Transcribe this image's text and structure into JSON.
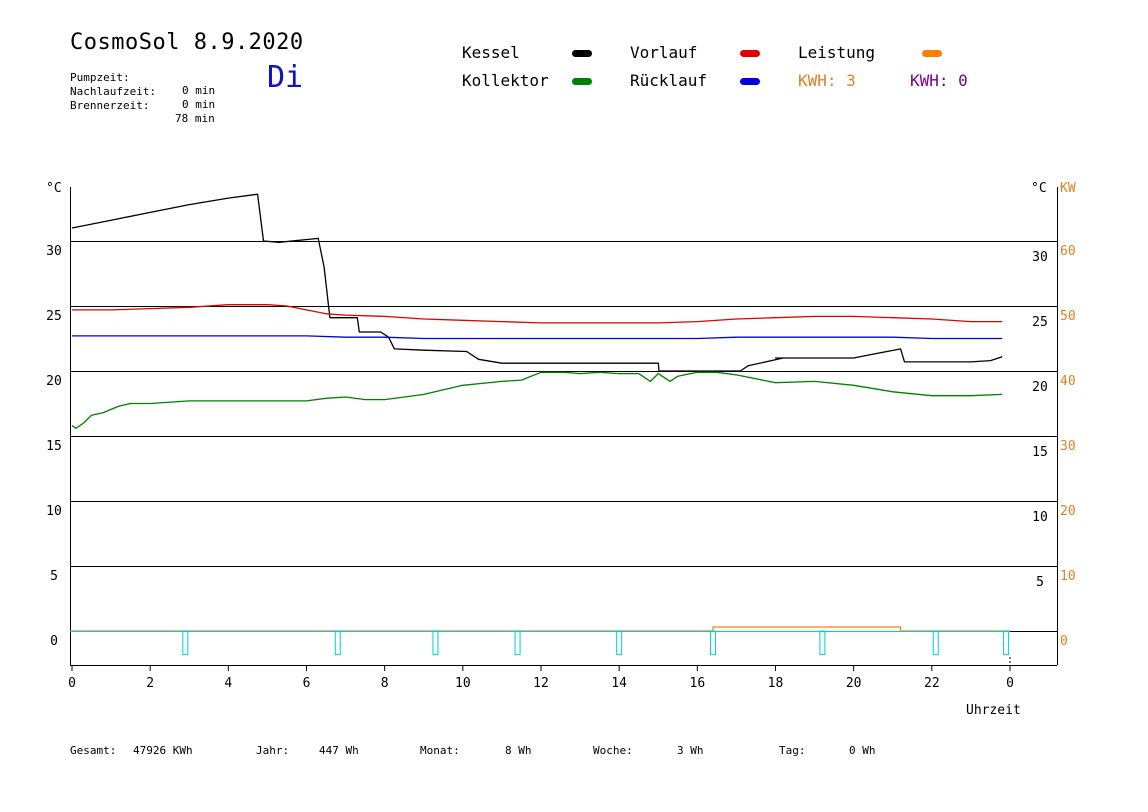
{
  "header": {
    "title": "CosmoSol 8.9.2020",
    "weekday": "Di",
    "stats": [
      {
        "label": "Pumpzeit:",
        "value": "0 min"
      },
      {
        "label": "Nachlaufzeit:",
        "value": "0 min"
      },
      {
        "label": "Brennerzeit:",
        "value": "78 min"
      }
    ]
  },
  "legend": {
    "items": [
      {
        "label": "Kessel",
        "color": "#000000"
      },
      {
        "label": "Kollektor",
        "color": "#008000"
      },
      {
        "label": "Vorlauf",
        "color": "#e00000"
      },
      {
        "label": "Rücklauf",
        "color": "#0000e0"
      },
      {
        "label": "Leistung",
        "color": "#ff8000"
      }
    ],
    "kwh": [
      {
        "text": "KWH: 3",
        "color": "#e08020"
      },
      {
        "text": "KWH: 0",
        "color": "#800080"
      }
    ]
  },
  "footer": {
    "items": [
      {
        "label": "Gesamt:",
        "value": "47926 KWh"
      },
      {
        "label": "Jahr:",
        "value": "447 Wh"
      },
      {
        "label": "Monat:",
        "value": "8 Wh"
      },
      {
        "label": "Woche:",
        "value": "3 Wh"
      },
      {
        "label": "Tag:",
        "value": "0 Wh"
      }
    ]
  },
  "chart_data": {
    "type": "line",
    "xlabel": "Uhrzeit",
    "ylabel_left": "°C",
    "ylabel_right": "°C",
    "ylabel_right2": "KW",
    "xlim": [
      0,
      24
    ],
    "ylim": [
      -2.5,
      35
    ],
    "x_ticks": [
      "0",
      "2",
      "4",
      "6",
      "8",
      "10",
      "12",
      "14",
      "16",
      "18",
      "20",
      "22",
      "0"
    ],
    "y_ticks_left": [
      "30",
      "25",
      "20",
      "15",
      "10",
      "5",
      "0"
    ],
    "y_ticks_right": [
      "30",
      "25",
      "20",
      "15",
      "10",
      "5"
    ],
    "y_ticks_right_kw": [
      "60",
      "50",
      "40",
      "30",
      "20",
      "10",
      "0"
    ],
    "grid": true,
    "series": [
      {
        "name": "Kessel",
        "color": "#000000",
        "x": [
          0,
          1,
          2,
          3,
          4,
          4.75,
          4.9,
          5.3,
          6.3,
          6.45,
          6.6,
          7.3,
          7.35,
          7.9,
          8.1,
          8.25,
          9,
          10.1,
          10.4,
          11,
          12,
          13,
          14,
          15,
          15.02,
          17.1,
          17.3,
          18.2,
          18,
          19,
          20,
          20.5,
          21.2,
          21.3,
          22,
          23,
          23.5,
          23.8
        ],
        "y": [
          31,
          31.6,
          32.2,
          32.8,
          33.3,
          33.6,
          30,
          29.9,
          30.2,
          28,
          24.1,
          24.1,
          23,
          23,
          22.6,
          21.7,
          21.6,
          21.5,
          20.9,
          20.6,
          20.6,
          20.6,
          20.6,
          20.6,
          20,
          20,
          20.4,
          21,
          21,
          21,
          21,
          21.3,
          21.7,
          20.7,
          20.7,
          20.7,
          20.8,
          21.1
        ]
      },
      {
        "name": "Kollektor",
        "color": "#008000",
        "x": [
          0,
          0.1,
          0.3,
          0.5,
          0.8,
          1.2,
          1.5,
          2,
          3,
          4,
          5,
          6,
          6.5,
          7,
          7.5,
          8,
          9,
          10,
          11,
          11.5,
          12,
          12.3,
          12.6,
          13,
          13.5,
          14,
          14.5,
          14.8,
          15,
          15.3,
          15.5,
          16,
          16.5,
          17,
          18,
          19,
          20,
          21,
          22,
          23,
          23.8
        ],
        "y": [
          15.8,
          15.6,
          16,
          16.6,
          16.8,
          17.3,
          17.5,
          17.5,
          17.7,
          17.7,
          17.7,
          17.7,
          17.9,
          18,
          17.8,
          17.8,
          18.2,
          18.9,
          19.2,
          19.3,
          19.9,
          19.9,
          19.9,
          19.8,
          19.9,
          19.8,
          19.8,
          19.2,
          19.8,
          19.2,
          19.6,
          19.9,
          19.9,
          19.7,
          19.1,
          19.2,
          18.9,
          18.4,
          18.1,
          18.1,
          18.2
        ]
      },
      {
        "name": "Vorlauf",
        "color": "#e00000",
        "x": [
          0,
          1,
          2,
          3,
          4,
          5,
          5.5,
          6,
          6.5,
          7,
          8,
          9,
          10,
          11,
          12,
          13,
          14,
          15,
          16,
          17,
          18,
          19,
          20,
          21,
          22,
          23,
          23.8
        ],
        "y": [
          24.7,
          24.7,
          24.8,
          24.9,
          25.1,
          25.1,
          25,
          24.7,
          24.4,
          24.3,
          24.2,
          24,
          23.9,
          23.8,
          23.7,
          23.7,
          23.7,
          23.7,
          23.8,
          24,
          24.1,
          24.2,
          24.2,
          24.1,
          24,
          23.8,
          23.8
        ]
      },
      {
        "name": "Rücklauf",
        "color": "#0000e0",
        "x": [
          0,
          1,
          2,
          3,
          4,
          5,
          6,
          7,
          8,
          9,
          10,
          11,
          12,
          13,
          14,
          15,
          16,
          17,
          18,
          19,
          20,
          21,
          22,
          23,
          23.8
        ],
        "y": [
          22.7,
          22.7,
          22.7,
          22.7,
          22.7,
          22.7,
          22.7,
          22.6,
          22.6,
          22.5,
          22.5,
          22.5,
          22.5,
          22.5,
          22.5,
          22.5,
          22.5,
          22.6,
          22.6,
          22.6,
          22.6,
          22.6,
          22.5,
          22.5,
          22.5
        ]
      },
      {
        "name": "Leistung",
        "color": "#ff8000",
        "x": [
          0,
          16.4,
          16.4,
          21.2,
          21.2,
          24
        ],
        "y": [
          0,
          0,
          0.2,
          0.2,
          0,
          0
        ]
      },
      {
        "name": "Pumpe",
        "color": "#00d0d0",
        "x": [
          2.9,
          6.8,
          9.3,
          11.4,
          14,
          16.4,
          19.2,
          22.1,
          23.9
        ],
        "y": [
          -0.7,
          -0.7,
          -0.7,
          -0.7,
          -0.7,
          -0.7,
          -0.7,
          -0.7,
          -0.7
        ]
      }
    ]
  }
}
